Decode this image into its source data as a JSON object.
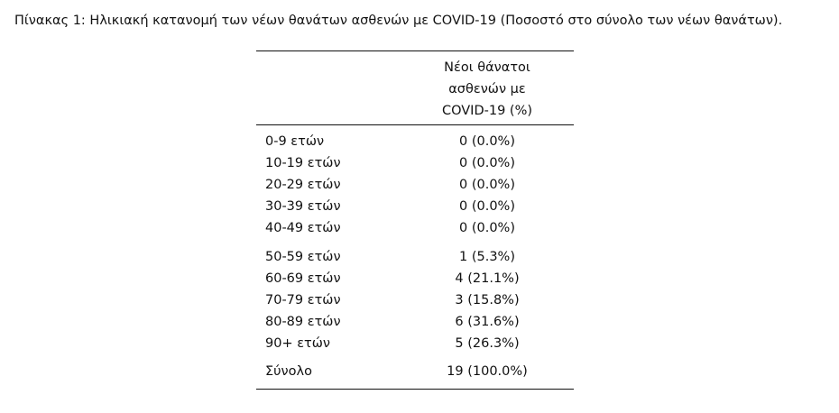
{
  "caption": "Πίνακας 1: Ηλικιακή κατανομή των νέων θανάτων ασθενών με COVID-19 (Ποσοστό στο σύνολο των νέων θανάτων).",
  "table": {
    "header": {
      "label": "",
      "value_lines": [
        "Νέοι θάνατοι",
        "ασθενών με",
        "COVID-19 (%)"
      ]
    },
    "groups": [
      [
        {
          "label": "0-9 ετών",
          "value": "0 (0.0%)"
        },
        {
          "label": "10-19 ετών",
          "value": "0 (0.0%)"
        },
        {
          "label": "20-29 ετών",
          "value": "0 (0.0%)"
        },
        {
          "label": "30-39 ετών",
          "value": "0 (0.0%)"
        },
        {
          "label": "40-49 ετών",
          "value": "0 (0.0%)"
        }
      ],
      [
        {
          "label": "50-59 ετών",
          "value": "1 (5.3%)"
        },
        {
          "label": "60-69 ετών",
          "value": "4 (21.1%)"
        },
        {
          "label": "70-79 ετών",
          "value": "3 (15.8%)"
        },
        {
          "label": "80-89 ετών",
          "value": "6 (31.6%)"
        },
        {
          "label": "90+ ετών",
          "value": "5 (26.3%)"
        }
      ],
      [
        {
          "label": "Σύνολο",
          "value": "19 (100.0%)"
        }
      ]
    ]
  }
}
